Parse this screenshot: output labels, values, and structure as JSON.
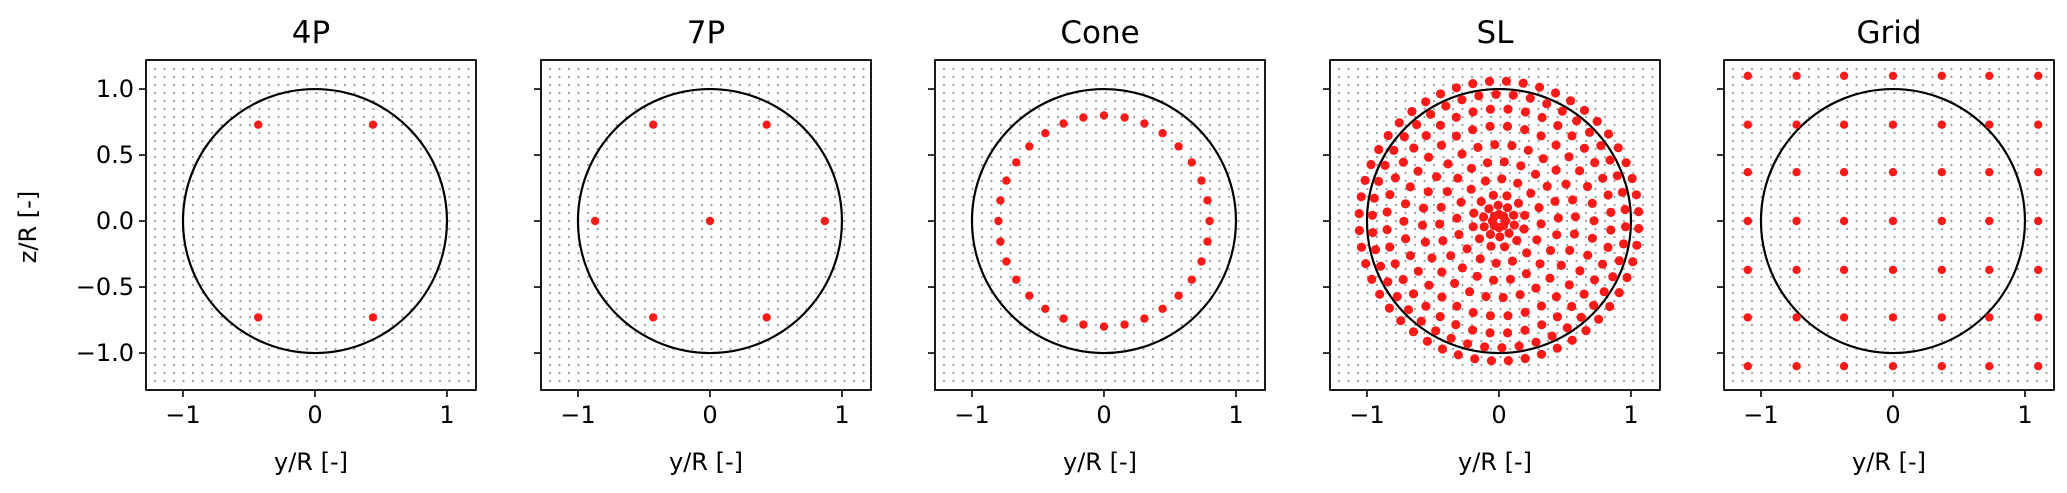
{
  "figure": {
    "ylabel": "z/R [-]"
  },
  "colors": {
    "points": "#ff1a1a",
    "grid_dots": "#9a9a9a",
    "circle": "#000000",
    "frame": "#000000"
  },
  "chart_data": [
    {
      "type": "scatter",
      "title": "4P",
      "xlabel": "y/R [-]",
      "ylabel": "z/R [-]",
      "xlim": [
        -1.28,
        1.22
      ],
      "ylim": [
        -1.28,
        1.22
      ],
      "xticks": [
        -1,
        0,
        1
      ],
      "yticks": [
        1.0,
        0.5,
        0.0,
        -0.5,
        -1.0
      ],
      "circle_radius": 1.0,
      "background_grid": true,
      "points": [
        [
          -0.43,
          0.73
        ],
        [
          0.44,
          0.73
        ],
        [
          -0.43,
          -0.73
        ],
        [
          0.44,
          -0.73
        ]
      ]
    },
    {
      "type": "scatter",
      "title": "7P",
      "xlabel": "y/R [-]",
      "ylabel": "z/R [-]",
      "xlim": [
        -1.28,
        1.22
      ],
      "ylim": [
        -1.28,
        1.22
      ],
      "xticks": [
        -1,
        0,
        1
      ],
      "yticks": [
        1.0,
        0.5,
        0.0,
        -0.5,
        -1.0
      ],
      "circle_radius": 1.0,
      "background_grid": true,
      "points": [
        [
          -0.43,
          0.73
        ],
        [
          0.43,
          0.73
        ],
        [
          -0.87,
          0.0
        ],
        [
          0.0,
          0.0
        ],
        [
          0.87,
          0.0
        ],
        [
          -0.43,
          -0.73
        ],
        [
          0.43,
          -0.73
        ]
      ]
    },
    {
      "type": "scatter",
      "title": "Cone",
      "xlabel": "y/R [-]",
      "ylabel": "z/R [-]",
      "xlim": [
        -1.28,
        1.22
      ],
      "ylim": [
        -1.28,
        1.22
      ],
      "xticks": [
        -1,
        0,
        1
      ],
      "yticks": [
        1.0,
        0.5,
        0.0,
        -0.5,
        -1.0
      ],
      "circle_radius": 1.0,
      "background_grid": true,
      "ring": {
        "radius": 0.8,
        "count": 32
      }
    },
    {
      "type": "scatter",
      "title": "SL",
      "xlabel": "y/R [-]",
      "ylabel": "z/R [-]",
      "xlim": [
        -1.28,
        1.22
      ],
      "ylim": [
        -1.28,
        1.22
      ],
      "xticks": [
        -1,
        0,
        1
      ],
      "yticks": [
        1.0,
        0.5,
        0.0,
        -0.5,
        -1.0
      ],
      "circle_radius": 1.0,
      "background_grid": true,
      "rings": [
        {
          "radius": 0.05,
          "count": 8
        },
        {
          "radius": 0.12,
          "count": 10
        },
        {
          "radius": 0.2,
          "count": 12
        },
        {
          "radius": 0.32,
          "count": 16
        },
        {
          "radius": 0.45,
          "count": 22
        },
        {
          "radius": 0.58,
          "count": 28
        },
        {
          "radius": 0.72,
          "count": 34
        },
        {
          "radius": 0.85,
          "count": 40
        },
        {
          "radius": 0.96,
          "count": 46
        },
        {
          "radius": 1.06,
          "count": 52
        }
      ]
    },
    {
      "type": "scatter",
      "title": "Grid",
      "xlabel": "y/R [-]",
      "ylabel": "z/R [-]",
      "xlim": [
        -1.28,
        1.22
      ],
      "ylim": [
        -1.28,
        1.22
      ],
      "xticks": [
        -1,
        0,
        1
      ],
      "yticks": [
        1.0,
        0.5,
        0.0,
        -0.5,
        -1.0
      ],
      "circle_radius": 1.0,
      "background_grid": true,
      "grid": {
        "y": [
          -1.1,
          -0.73,
          -0.37,
          0.0,
          0.37,
          0.73,
          1.1
        ],
        "z": [
          1.1,
          0.73,
          0.37,
          0.0,
          -0.37,
          -0.73,
          -1.1
        ]
      }
    }
  ]
}
